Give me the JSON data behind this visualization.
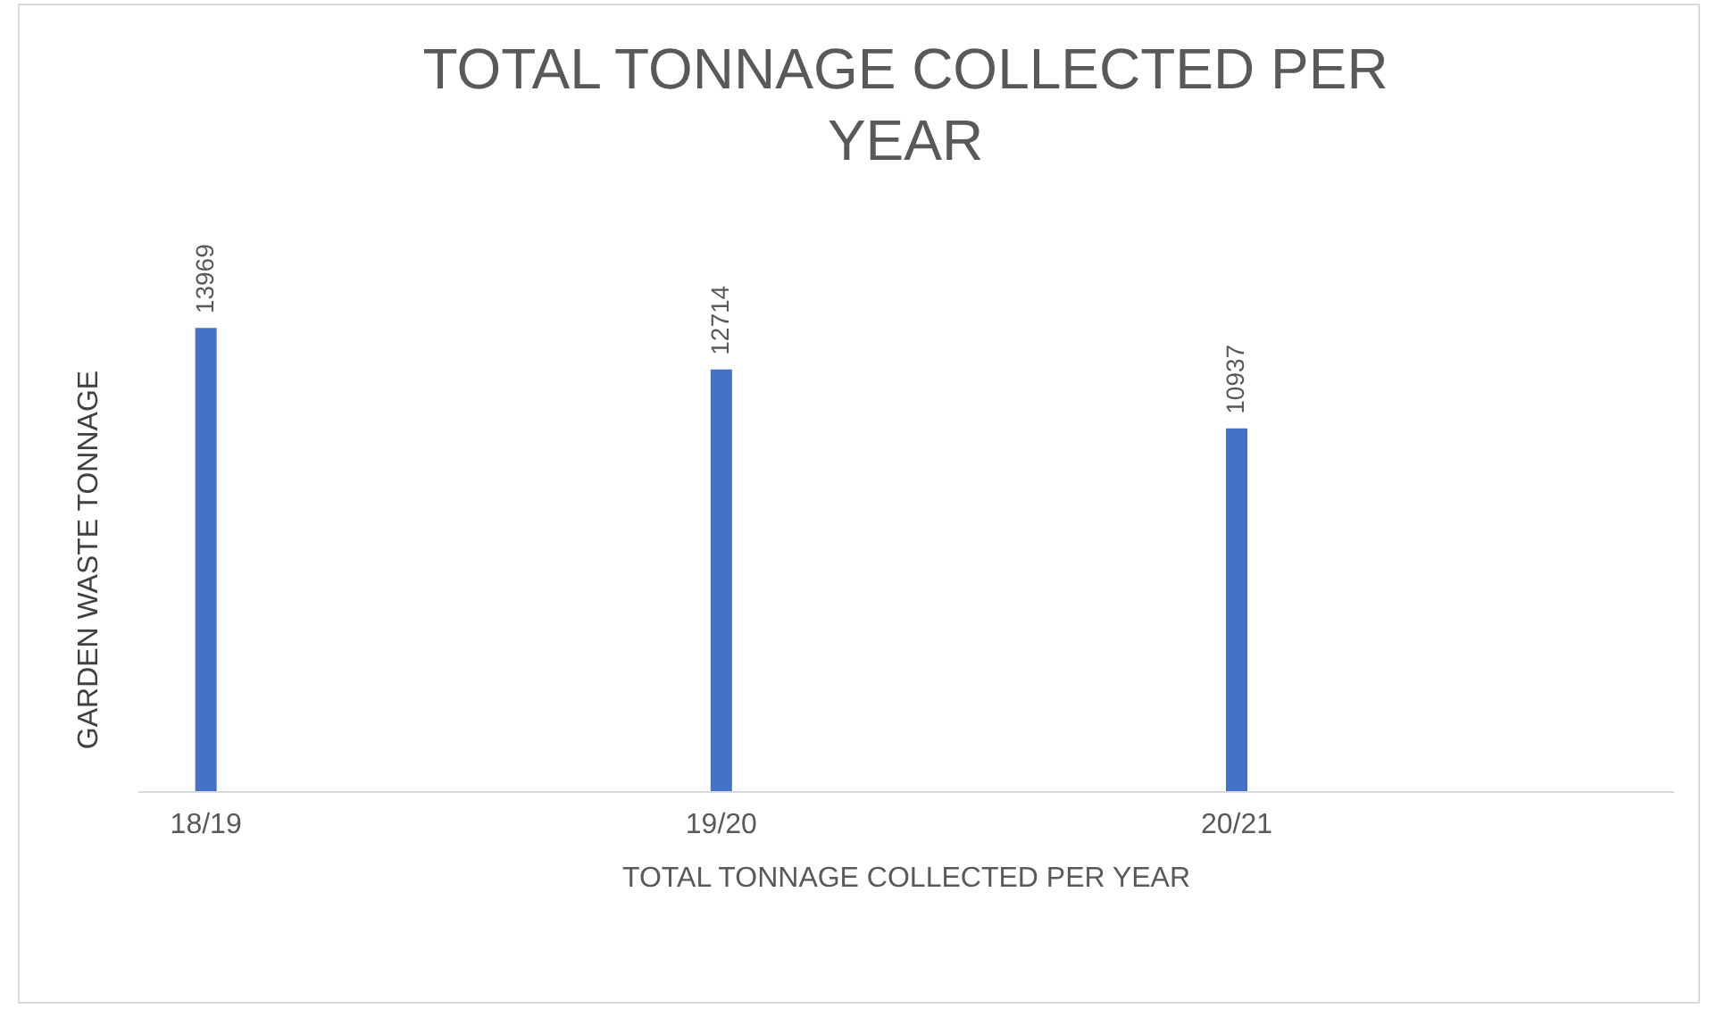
{
  "chart_data": {
    "type": "bar",
    "title": "TOTAL TONNAGE COLLECTED  PER YEAR",
    "xlabel": "TOTAL TONNAGE COLLECTED PER YEAR",
    "ylabel": "GARDEN WASTE TONNAGE",
    "categories": [
      "18/19",
      "19/20",
      "20/21"
    ],
    "values": [
      13969,
      12714,
      10937
    ],
    "color": "#4472c4",
    "data_labels": true
  }
}
